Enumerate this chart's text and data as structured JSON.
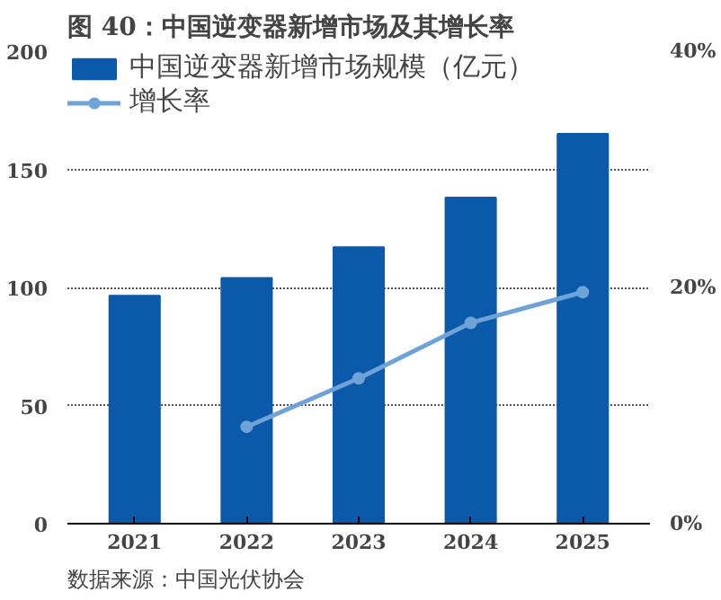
{
  "chart_data": {
    "type": "bar",
    "title": "图 40：中国逆变器新增市场及其增长率",
    "categories": [
      "2021",
      "2022",
      "2023",
      "2024",
      "2025"
    ],
    "series": [
      {
        "name": "中国逆变器新增市场规模（亿元）",
        "color": "#0b5aaa",
        "values": [
          96.5,
          104,
          117,
          138,
          165
        ]
      },
      {
        "name": "增长率",
        "type": "line",
        "axis": "y2",
        "color": "#6fa3d8",
        "values": [
          null,
          8.2,
          12.3,
          17.0,
          19.6
        ]
      }
    ],
    "ylim": [
      0,
      200
    ],
    "yticks": [
      0,
      50,
      100,
      150,
      200
    ],
    "y2lim": [
      0,
      40
    ],
    "y2ticks": [
      {
        "value": 0,
        "label": "0%"
      },
      {
        "value": 20,
        "label": "20%"
      },
      {
        "value": 40,
        "label": "40%"
      }
    ],
    "grid": "y",
    "legend": "top left",
    "marker": "circle",
    "annotations": [
      "数据来源：中国光伏协会"
    ]
  }
}
